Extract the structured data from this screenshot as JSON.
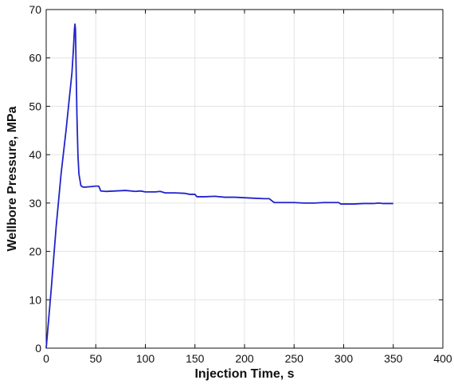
{
  "chart_data": {
    "type": "line",
    "title": "",
    "xlabel": "Injection Time, s",
    "ylabel": "Wellbore Pressure, MPa",
    "xlim": [
      0,
      400
    ],
    "ylim": [
      0,
      70
    ],
    "xticks": [
      0,
      50,
      100,
      150,
      200,
      250,
      300,
      350,
      400
    ],
    "yticks": [
      0,
      10,
      20,
      30,
      40,
      50,
      60,
      70
    ],
    "grid": true,
    "line_color": "#2222cc",
    "series": [
      {
        "values": [
          [
            0,
            0
          ],
          [
            5,
            12
          ],
          [
            10,
            25
          ],
          [
            15,
            36
          ],
          [
            20,
            45
          ],
          [
            24,
            53
          ],
          [
            26,
            57
          ],
          [
            27.5,
            62
          ],
          [
            28.5,
            66
          ],
          [
            29,
            67
          ],
          [
            29.5,
            66
          ],
          [
            30,
            60
          ],
          [
            31,
            48
          ],
          [
            32,
            40
          ],
          [
            33,
            36
          ],
          [
            35,
            33.6
          ],
          [
            37,
            33.3
          ],
          [
            40,
            33.3
          ],
          [
            45,
            33.4
          ],
          [
            50,
            33.5
          ],
          [
            53,
            33.5
          ],
          [
            55,
            32.5
          ],
          [
            60,
            32.4
          ],
          [
            70,
            32.5
          ],
          [
            80,
            32.6
          ],
          [
            90,
            32.4
          ],
          [
            95,
            32.5
          ],
          [
            100,
            32.3
          ],
          [
            110,
            32.3
          ],
          [
            115,
            32.4
          ],
          [
            120,
            32.1
          ],
          [
            130,
            32.1
          ],
          [
            140,
            32.0
          ],
          [
            145,
            31.8
          ],
          [
            150,
            31.8
          ],
          [
            152,
            31.3
          ],
          [
            160,
            31.3
          ],
          [
            170,
            31.4
          ],
          [
            180,
            31.2
          ],
          [
            190,
            31.2
          ],
          [
            200,
            31.1
          ],
          [
            210,
            31.0
          ],
          [
            220,
            30.9
          ],
          [
            225,
            30.9
          ],
          [
            228,
            30.4
          ],
          [
            230,
            30.1
          ],
          [
            240,
            30.1
          ],
          [
            250,
            30.1
          ],
          [
            260,
            30.0
          ],
          [
            270,
            30.0
          ],
          [
            280,
            30.1
          ],
          [
            290,
            30.1
          ],
          [
            295,
            30.1
          ],
          [
            297,
            29.8
          ],
          [
            310,
            29.8
          ],
          [
            320,
            29.9
          ],
          [
            330,
            29.9
          ],
          [
            335,
            30.0
          ],
          [
            340,
            29.9
          ],
          [
            350,
            29.9
          ]
        ]
      }
    ]
  }
}
